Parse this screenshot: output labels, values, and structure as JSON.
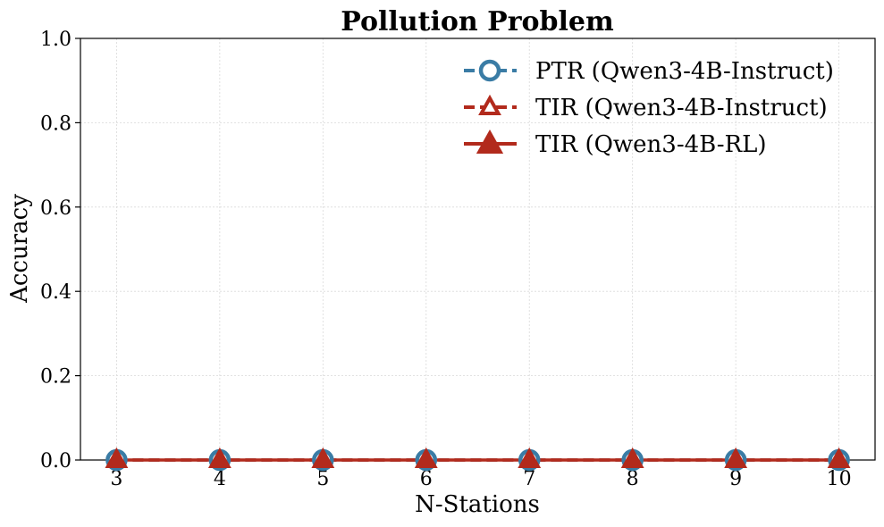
{
  "chart_data": {
    "type": "line",
    "title": "Pollution Problem",
    "xlabel": "N-Stations",
    "ylabel": "Accuracy",
    "x": [
      3,
      4,
      5,
      6,
      7,
      8,
      9,
      10
    ],
    "x_tick_labels": [
      "3",
      "4",
      "5",
      "6",
      "7",
      "8",
      "9",
      "10"
    ],
    "ylim": [
      0,
      1.0
    ],
    "y_ticks": [
      0.0,
      0.2,
      0.4,
      0.6,
      0.8,
      1.0
    ],
    "y_tick_labels": [
      "0.0",
      "0.2",
      "0.4",
      "0.6",
      "0.8",
      "1.0"
    ],
    "grid": true,
    "legend_position": "top-right",
    "series": [
      {
        "name": "PTR (Qwen3-4B-Instruct)",
        "values": [
          0,
          0,
          0,
          0,
          0,
          0,
          0,
          0
        ],
        "color": "#3a7ca5",
        "marker": "open-circle",
        "line": "dashed"
      },
      {
        "name": "TIR (Qwen3-4B-Instruct)",
        "values": [
          0,
          0,
          0,
          0,
          0,
          0,
          0,
          0
        ],
        "color": "#b22a1c",
        "marker": "open-triangle",
        "line": "dashed"
      },
      {
        "name": "TIR (Qwen3-4B-RL)",
        "values": [
          0,
          0,
          0,
          0,
          0,
          0,
          0,
          0
        ],
        "color": "#b22a1c",
        "marker": "filled-triangle",
        "line": "solid"
      }
    ]
  }
}
